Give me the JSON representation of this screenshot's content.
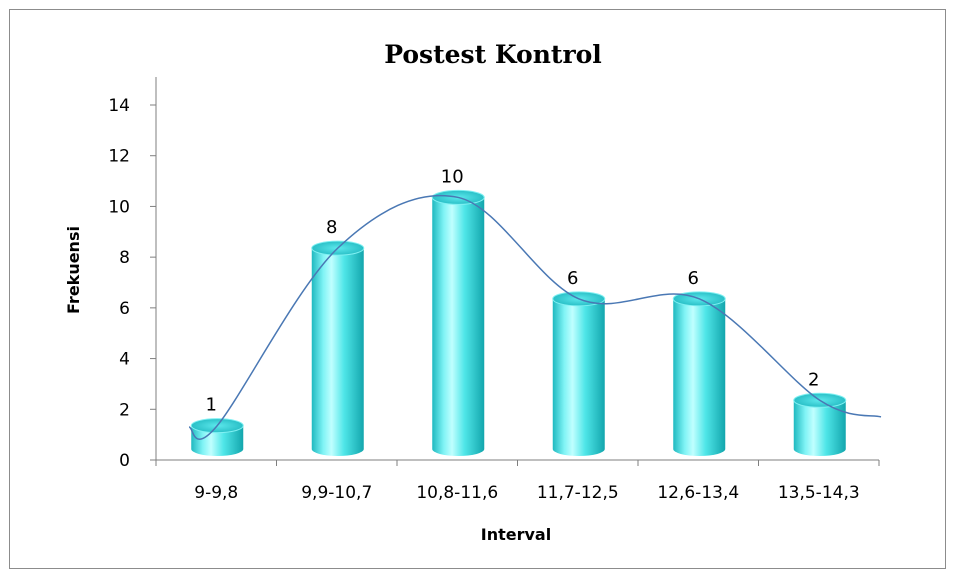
{
  "chart_data": {
    "type": "bar",
    "title": "Postest Kontrol",
    "xlabel": "Interval",
    "ylabel": "Frekuensi",
    "categories": [
      "9-9,8",
      "9,9-10,7",
      "10,8-11,6",
      "11,7-12,5",
      "12,6-13,4",
      "13,5-14,3"
    ],
    "values": [
      1,
      8,
      10,
      6,
      6,
      2
    ],
    "yticks": [
      "0",
      "2",
      "4",
      "6",
      "8",
      "10",
      "12",
      "14"
    ],
    "ylim": [
      0,
      14
    ],
    "grid": false,
    "legend": "none",
    "bar_style": "3d-cylinder",
    "trendline": "smooth",
    "colors": {
      "bar_body": "#3fe0e0",
      "bar_highlight": "#b8ffff",
      "bar_shadow": "#13a6ad",
      "bar_top": "#28c4cc",
      "trend_line": "#4a78b4",
      "axis": "#7f7f7f"
    }
  }
}
